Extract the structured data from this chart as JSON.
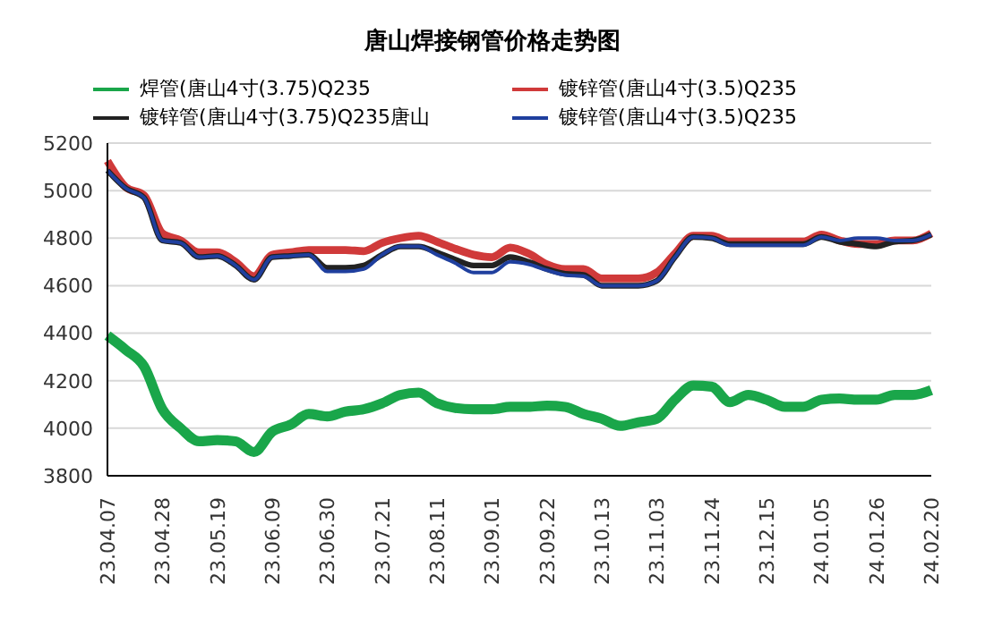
{
  "chart_data": {
    "type": "line",
    "title": "唐山焊接钢管价格走势图",
    "categories": [
      "23.04.07",
      null,
      null,
      "23.04.28",
      null,
      null,
      "23.05.19",
      null,
      null,
      "23.06.09",
      null,
      null,
      "23.06.30",
      null,
      null,
      "23.07.21",
      null,
      null,
      "23.08.11",
      null,
      null,
      "23.09.01",
      null,
      null,
      "23.09.22",
      null,
      null,
      "23.10.13",
      null,
      null,
      "23.11.03",
      null,
      null,
      "23.11.24",
      null,
      null,
      "23.12.15",
      null,
      null,
      "24.01.05",
      null,
      null,
      "24.01.26",
      null,
      null,
      "24.02.20"
    ],
    "series": [
      {
        "name": "焊管(唐山4寸(3.75)Q235",
        "color": "#1aa64a",
        "values": [
          4390,
          4330,
          4260,
          4080,
          4000,
          3945,
          3950,
          3945,
          3900,
          3985,
          4015,
          4060,
          4050,
          4070,
          4080,
          4105,
          4140,
          4150,
          4105,
          4085,
          4080,
          4080,
          4090,
          4090,
          4095,
          4090,
          4060,
          4040,
          4010,
          4025,
          4040,
          4120,
          4180,
          4175,
          4110,
          4140,
          4120,
          4090,
          4090,
          4120,
          4125,
          4120,
          4120,
          4140,
          4140,
          4160
        ]
      },
      {
        "name": "镀锌管(唐山4寸(3.5)Q235",
        "color": "#d03a3a",
        "values": [
          5125,
          5015,
          4980,
          4820,
          4790,
          4740,
          4740,
          4700,
          4640,
          4730,
          4740,
          4750,
          4750,
          4750,
          4745,
          4780,
          4800,
          4810,
          4785,
          4755,
          4730,
          4720,
          4760,
          4735,
          4690,
          4670,
          4670,
          4630,
          4630,
          4630,
          4655,
          4735,
          4810,
          4810,
          4785,
          4785,
          4785,
          4785,
          4785,
          4815,
          4790,
          4775,
          4775,
          4790,
          4790,
          4820
        ]
      },
      {
        "name": "镀锌管(唐山4寸(3.75)Q235唐山",
        "color": "#222222",
        "values": [
          5085,
          5010,
          4970,
          4790,
          4780,
          4720,
          4725,
          4685,
          4625,
          4720,
          4725,
          4730,
          4675,
          4675,
          4685,
          4730,
          4765,
          4765,
          4740,
          4710,
          4685,
          4685,
          4720,
          4700,
          4670,
          4650,
          4645,
          4600,
          4600,
          4600,
          4620,
          4720,
          4805,
          4800,
          4775,
          4775,
          4775,
          4775,
          4775,
          4805,
          4785,
          4775,
          4765,
          4785,
          4790,
          4815
        ]
      },
      {
        "name": "镀锌管(唐山4寸(3.5)Q235",
        "color": "#1f3f9e",
        "values": [
          5085,
          5010,
          4970,
          4790,
          4780,
          4720,
          4725,
          4685,
          4625,
          4720,
          4725,
          4730,
          4660,
          4660,
          4670,
          4730,
          4765,
          4765,
          4730,
          4695,
          4655,
          4655,
          4700,
          4690,
          4665,
          4645,
          4640,
          4600,
          4600,
          4600,
          4620,
          4720,
          4805,
          4800,
          4770,
          4770,
          4770,
          4770,
          4770,
          4805,
          4790,
          4800,
          4800,
          4790,
          4790,
          4815
        ]
      }
    ],
    "ylim": [
      3800,
      5200
    ],
    "yticks": [
      3800,
      4000,
      4200,
      4400,
      4600,
      4800,
      5000,
      5200
    ],
    "grid": "y",
    "legend": "top",
    "marker": "none",
    "line_style": "solid"
  }
}
